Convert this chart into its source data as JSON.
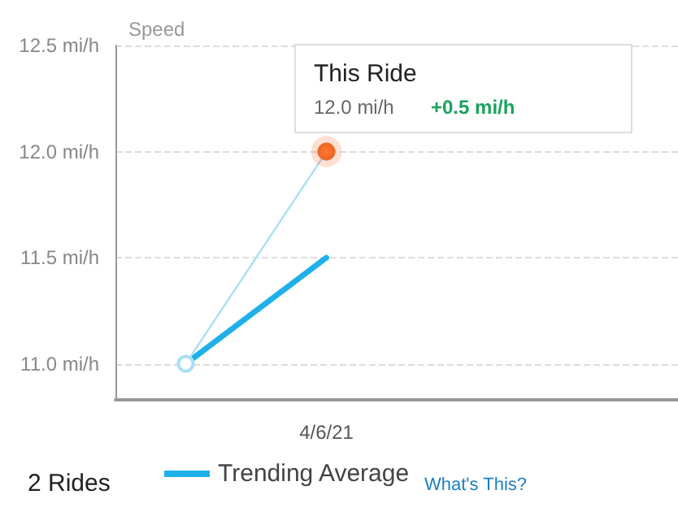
{
  "chart_data": {
    "type": "line",
    "ylabel": "Speed",
    "categories": [
      null,
      "4/6/21",
      null,
      null
    ],
    "series": [
      {
        "color": "#a9def5",
        "values": [
          11.0,
          12.0,
          null,
          null
        ],
        "marker": "circle"
      },
      {
        "name": "Trending Average",
        "color": "#1fb0e8",
        "values": [
          11.0,
          11.5,
          null,
          null
        ],
        "marker": "none"
      },
      {
        "type": "scatter",
        "color": "#fc5200",
        "x": [
          "4/6/21"
        ],
        "values": [
          12.0
        ],
        "marker": "circle"
      }
    ],
    "ylim": [
      10.83,
      12.5
    ],
    "yticks": [
      {
        "value": 11.0,
        "label": "11.0 mi/h"
      },
      {
        "value": 11.5,
        "label": "11.5 mi/h"
      },
      {
        "value": 12.0,
        "label": "12.0 mi/h"
      },
      {
        "value": 12.5,
        "label": "12.5 mi/h"
      }
    ],
    "grid": true,
    "legend": "bottom",
    "annotations": [
      "This Ride",
      "12.0 mi/h",
      "+0.5 mi/h",
      "2 Rides",
      "What's This?"
    ]
  }
}
